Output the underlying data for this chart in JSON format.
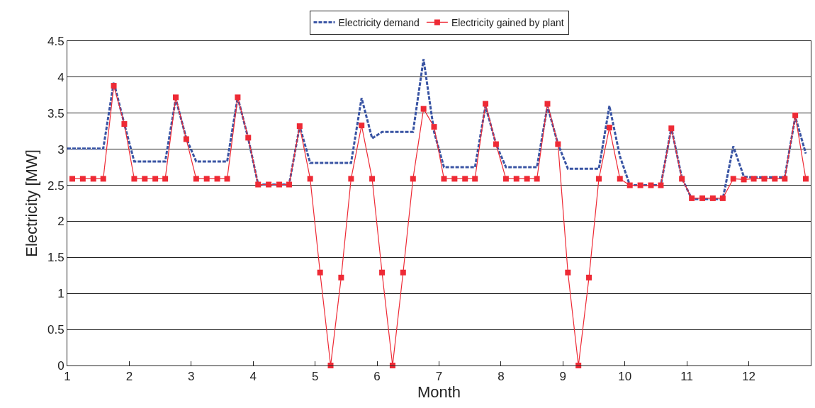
{
  "chart_data": {
    "type": "line",
    "xlabel": "Month",
    "ylabel": "Electricity [MW]",
    "xlim": [
      1,
      13
    ],
    "xticks": [
      1,
      2,
      3,
      4,
      5,
      6,
      7,
      8,
      9,
      10,
      11,
      12
    ],
    "ylim": [
      0,
      4.5
    ],
    "yticks": [
      0,
      0.5,
      1,
      1.5,
      2,
      2.5,
      3,
      3.5,
      4,
      4.5
    ],
    "grid": "y",
    "legend": "top",
    "series": [
      {
        "name": "Electricity demand",
        "color": "#3a55a4",
        "line_style": "dashed",
        "marker": "none",
        "x": [
          1,
          1.08,
          1.25,
          1.42,
          1.58,
          1.75,
          1.92,
          2.08,
          2.25,
          2.42,
          2.58,
          2.75,
          2.92,
          3.08,
          3.25,
          3.42,
          3.58,
          3.75,
          3.92,
          4.08,
          4.25,
          4.42,
          4.58,
          4.75,
          4.92,
          5.08,
          5.25,
          5.42,
          5.58,
          5.75,
          5.92,
          6.08,
          6.25,
          6.42,
          6.58,
          6.75,
          6.92,
          7.08,
          7.25,
          7.42,
          7.58,
          7.75,
          7.92,
          8.08,
          8.25,
          8.42,
          8.58,
          8.75,
          8.92,
          9.08,
          9.25,
          9.42,
          9.58,
          9.75,
          9.92,
          10.08,
          10.25,
          10.42,
          10.58,
          10.75,
          10.92,
          11.08,
          11.25,
          11.42,
          11.58,
          11.75,
          11.92,
          12.08,
          12.25,
          12.42,
          12.58,
          12.75,
          12.92
        ],
        "values": [
          3.01,
          3.01,
          3.01,
          3.01,
          3.01,
          3.93,
          3.35,
          2.83,
          2.83,
          2.83,
          2.83,
          3.7,
          3.15,
          2.83,
          2.83,
          2.83,
          2.83,
          3.72,
          3.15,
          2.51,
          2.51,
          2.51,
          2.51,
          3.32,
          2.81,
          2.81,
          2.81,
          2.81,
          2.81,
          3.71,
          3.15,
          3.24,
          3.24,
          3.24,
          3.24,
          4.25,
          3.24,
          2.75,
          2.75,
          2.75,
          2.75,
          3.6,
          3.07,
          2.75,
          2.75,
          2.75,
          2.75,
          3.6,
          3.07,
          2.73,
          2.73,
          2.73,
          2.73,
          3.6,
          2.9,
          2.5,
          2.5,
          2.5,
          2.5,
          3.3,
          2.6,
          2.31,
          2.31,
          2.31,
          2.31,
          3.04,
          2.62,
          2.61,
          2.61,
          2.61,
          2.61,
          3.45,
          2.94
        ]
      },
      {
        "name": "Electricity gained by plant",
        "color": "#ee2a35",
        "line_style": "solid",
        "marker": "square",
        "x": [
          1.08,
          1.25,
          1.42,
          1.58,
          1.75,
          1.92,
          2.08,
          2.25,
          2.42,
          2.58,
          2.75,
          2.92,
          3.08,
          3.25,
          3.42,
          3.58,
          3.75,
          3.92,
          4.08,
          4.25,
          4.42,
          4.58,
          4.75,
          4.92,
          5.08,
          5.25,
          5.42,
          5.58,
          5.75,
          5.92,
          6.08,
          6.25,
          6.42,
          6.58,
          6.75,
          6.92,
          7.08,
          7.25,
          7.42,
          7.58,
          7.75,
          7.92,
          8.08,
          8.25,
          8.42,
          8.58,
          8.75,
          8.92,
          9.08,
          9.25,
          9.42,
          9.58,
          9.75,
          9.92,
          10.08,
          10.25,
          10.42,
          10.58,
          10.75,
          10.92,
          11.08,
          11.25,
          11.42,
          11.58,
          11.75,
          11.92,
          12.08,
          12.25,
          12.42,
          12.58,
          12.75,
          12.92
        ],
        "values": [
          2.59,
          2.59,
          2.59,
          2.59,
          3.88,
          3.35,
          2.59,
          2.59,
          2.59,
          2.59,
          3.72,
          3.14,
          2.59,
          2.59,
          2.59,
          2.59,
          3.72,
          3.16,
          2.51,
          2.51,
          2.51,
          2.51,
          3.32,
          2.59,
          1.29,
          0,
          1.22,
          2.59,
          3.33,
          2.59,
          1.29,
          0,
          1.29,
          2.59,
          3.56,
          3.31,
          2.59,
          2.59,
          2.59,
          2.59,
          3.63,
          3.07,
          2.59,
          2.59,
          2.59,
          2.59,
          3.63,
          3.07,
          1.29,
          0,
          1.22,
          2.59,
          3.3,
          2.59,
          2.5,
          2.5,
          2.5,
          2.5,
          3.29,
          2.59,
          2.32,
          2.32,
          2.32,
          2.32,
          2.59,
          2.58,
          2.59,
          2.59,
          2.59,
          2.59,
          3.47,
          2.59
        ]
      }
    ]
  }
}
